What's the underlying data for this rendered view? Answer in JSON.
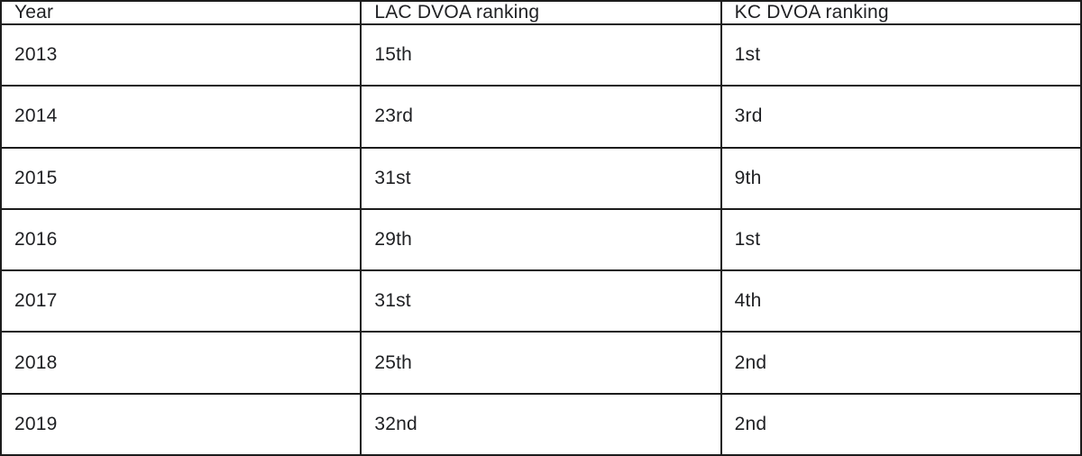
{
  "table": {
    "columns": [
      "Year",
      "LAC DVOA ranking",
      "KC DVOA ranking"
    ],
    "rows": [
      [
        "2013",
        "15th",
        "1st"
      ],
      [
        "2014",
        "23rd",
        "3rd"
      ],
      [
        "2015",
        "31st",
        "9th"
      ],
      [
        "2016",
        "29th",
        "1st"
      ],
      [
        "2017",
        "31st",
        "4th"
      ],
      [
        "2018",
        "25th",
        "2nd"
      ],
      [
        "2019",
        "32nd",
        "2nd"
      ]
    ],
    "colors": {
      "border": "#1c1c1c",
      "text": "#1f2023",
      "background": "#ffffff"
    }
  }
}
